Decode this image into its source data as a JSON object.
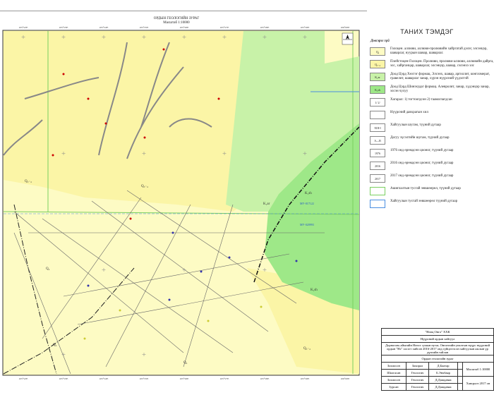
{
  "map": {
    "title": "ОРДЫН ГЕОЛОГИЙН ЗУРАГ",
    "scale": "Масштаб 1:10000",
    "longitude_ticks": [
      "105°52'E",
      "105°53'E",
      "105°54'E",
      "105°55'E",
      "105°56'E",
      "105°57'E",
      "105°58'E",
      "105°59'E",
      "106°00'E"
    ],
    "unit_labels": [
      {
        "text": "Q₄",
        "zone": "Q4"
      },
      {
        "text": "Q₃₋₄",
        "zone": "Q34"
      },
      {
        "text": "Q₃₋₄",
        "zone": "Q34"
      },
      {
        "text": "K₁ar",
        "zone": "K1ar"
      },
      {
        "text": "K₁sh",
        "zone": "K1sh"
      },
      {
        "text": "K₁sh",
        "zone": "K1sh"
      },
      {
        "text": "Q₄",
        "zone": "Q4"
      },
      {
        "text": "Q₃₋₄",
        "zone": "Q34"
      },
      {
        "text": "Q₄",
        "zone": "Q4"
      }
    ],
    "deposit_labels": [
      "МУ-017122",
      "МУ-020993"
    ],
    "colors": {
      "Q4": "#fdfbc4",
      "Q34": "#fbf5a6",
      "K1ar": "#c8f2a8",
      "K1sh": "#9ee888",
      "license_border": "#7ad060",
      "exploration_border": "#4a8ee0",
      "fault": "#333333"
    }
  },
  "legend": {
    "title": "ТАНИХ ТЭМДЭГ",
    "subtitle": "Дэвсэрэг зүй",
    "items": [
      {
        "symbol": "Q₄",
        "text": "Голоцен. аллюви, аллюви-пролювийн хайргатай дэлэг, элсэнцэр, шаварлаг, нуурын шавар, шаварлаг."
      },
      {
        "symbol": "Q₃₋₄",
        "text": "Плейстоцен-Голоцен. Пролюви, пролюви-аллюви, аллювийн дайрга, элс, хайрганцар, шаварлаг, элсэнцэр, шавар, сэлэнхэ элс"
      },
      {
        "symbol": "K₁ar",
        "text": "Доод Цэрд Хөхтэг формац. Элсэнх, шавар, аргиллит, конгломерат, гравелит, шаварлаг занар, хүрэн нүүрсний үүдэлтэй"
      },
      {
        "symbol": "K₁sh",
        "text": "Доод Цэрд Шинэхудаг формац. Алевролит, занар, хүдэнцэр занар, элсэн чулуу"
      },
      {
        "symbol": "1/ 2/",
        "text": "Хагарал: 1) тогтоогдсон 2) таамаглагдсан"
      },
      {
        "symbol": "",
        "text": "Нүүрсний давхрагын хил"
      },
      {
        "symbol": "XIII-I",
        "text": "Хайгуулын шугам, түүний дугаар"
      },
      {
        "symbol": "A—B",
        "text": "Дагуу зүсэлтийн шугам, түүний дугаар"
      },
      {
        "symbol": "1976",
        "text": "1976 онд өрөмдсөн цооног, түүний дугаар"
      },
      {
        "symbol": "2016",
        "text": "2016 онд өрөмдсөн цооног, түүний дугаар"
      },
      {
        "symbol": "2017",
        "text": "2017 онд өрөмдсөн цооног, түүний дугаар"
      },
      {
        "symbol": "",
        "text": "Ашиглалтын тусгай зөвшөөрөл, түүний дугаар"
      },
      {
        "symbol": "",
        "text": "Хайгуулын тусгай зөвшөөрөл түүний дугаар"
      }
    ]
  },
  "title_block": {
    "company": "\"Нөөц Онгл\" ХХК",
    "report": "Нүүрсний ордын хайгуул",
    "description": "Дорноговь аймгийн Нөөст сумын нутаг, Онгонгийн уналтын нүүрс нүүрсний ордын \"Нэ\" хэсэгт хийсэн 2016-2017 онд гүйцэтгэсэн хайгуулын ажлын үр дүнгийн тайлан",
    "sheet": "Ордын геологийн зураг",
    "rows": [
      [
        "Зохиосон",
        "Захирал",
        "Д.Баатар",
        ""
      ],
      [
        "Шалгасан",
        "Геологич",
        "Б.Энхбаяр",
        ""
      ],
      [
        "Зохиосон",
        "Геологич",
        "Д.Дашдаваа",
        ""
      ],
      [
        "Зурсан",
        "Геологич",
        "Д.Дашдаваа",
        ""
      ]
    ],
    "scale_label": "Масштаб 1:10000",
    "date_label": "Хавсралт 2017 он"
  }
}
